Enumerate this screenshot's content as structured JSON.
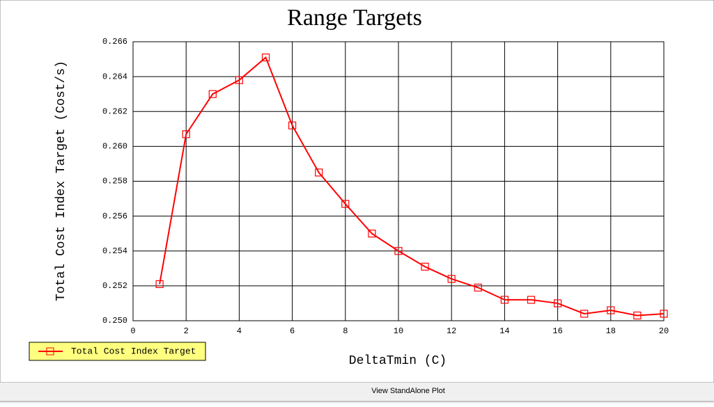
{
  "chart_data": {
    "type": "line",
    "title": "Range Targets",
    "x_label": "DeltaTmin (C)",
    "y_label": "Total Cost Index Target (Cost/s)",
    "x": [
      1,
      2,
      3,
      4,
      5,
      6,
      7,
      8,
      9,
      10,
      11,
      12,
      13,
      14,
      15,
      16,
      17,
      18,
      19,
      20
    ],
    "series": [
      {
        "name": "Total Cost Index Target",
        "color": "#ff0000",
        "values": [
          0.2521,
          0.2607,
          0.263,
          0.2638,
          0.2651,
          0.2612,
          0.2585,
          0.2567,
          0.255,
          0.254,
          0.2531,
          0.2524,
          0.2519,
          0.2512,
          0.2512,
          0.251,
          0.2504,
          0.2506,
          0.2503,
          0.2504
        ]
      }
    ],
    "xlim": [
      0,
      20
    ],
    "xticks": [
      0,
      2,
      4,
      6,
      8,
      10,
      12,
      14,
      16,
      18,
      20
    ],
    "ylim": [
      0.25,
      0.266
    ],
    "yticks": [
      {
        "value": 0.25,
        "label": "0.250"
      },
      {
        "value": 0.252,
        "label": "0.252"
      },
      {
        "value": 0.254,
        "label": "0.254"
      },
      {
        "value": 0.256,
        "label": "0.256"
      },
      {
        "value": 0.258,
        "label": "0.258"
      },
      {
        "value": 0.26,
        "label": "0.260"
      },
      {
        "value": 0.262,
        "label": "0.262"
      },
      {
        "value": 0.264,
        "label": "0.264"
      },
      {
        "value": 0.266,
        "label": "0.266"
      }
    ],
    "grid": true,
    "legend": "bottom-left"
  },
  "footer": {
    "button": "View StandAlone Plot"
  }
}
